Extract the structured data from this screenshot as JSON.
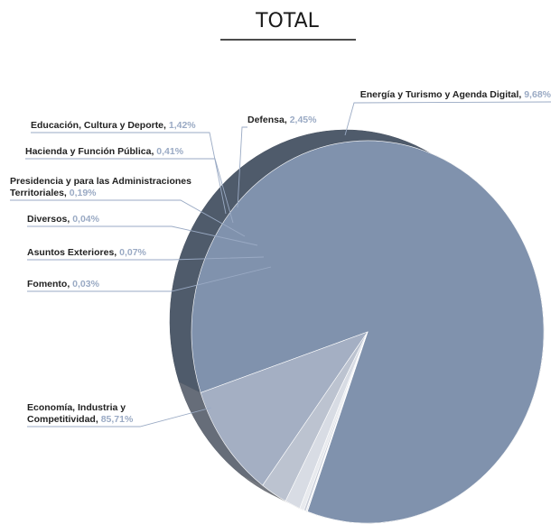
{
  "chart_data": {
    "type": "pie",
    "title": "TOTAL",
    "slices": [
      {
        "label": "Economía, Industria y Competitividad",
        "value_label": "85,71%",
        "value": 85.71,
        "color": "#8092ad"
      },
      {
        "label": "Energía y Turismo y Agenda Digital",
        "value_label": "9,68%",
        "value": 9.68,
        "color": "#a4afc3"
      },
      {
        "label": "Defensa",
        "value_label": "2,45%",
        "value": 2.45,
        "color": "#bcc3d0"
      },
      {
        "label": "Educación, Cultura y Deporte",
        "value_label": "1,42%",
        "value": 1.42,
        "color": "#d8dce4"
      },
      {
        "label": "Hacienda y Función Pública",
        "value_label": "0,41%",
        "value": 0.41,
        "color": "#e8eaee"
      },
      {
        "label": "Presidencia y para las Administraciones Territoriales",
        "value_label": "0,19%",
        "value": 0.19,
        "color": "#c8cdd8"
      },
      {
        "label": "Diversos",
        "value_label": "0,04%",
        "value": 0.04,
        "color": "#b4bccb"
      },
      {
        "label": "Asuntos Exteriores",
        "value_label": "0,07%",
        "value": 0.07,
        "color": "#9eaabd"
      },
      {
        "label": "Fomento",
        "value_label": "0,03%",
        "value": 0.03,
        "color": "#8d9ab0"
      }
    ],
    "legend": "none"
  }
}
